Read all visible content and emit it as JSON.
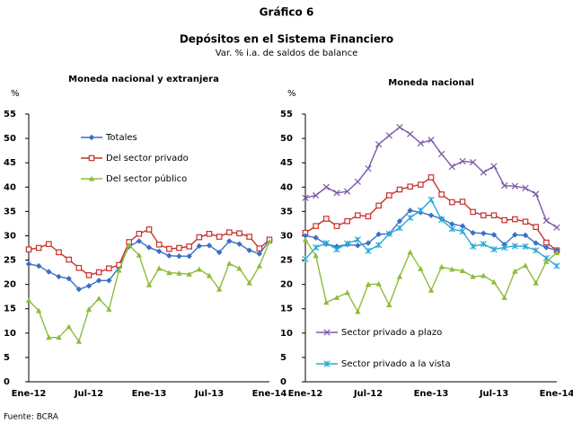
{
  "figure": {
    "label": "Gráfico 6",
    "title": "Depósitos en el Sistema Financiero",
    "subtitle": "Var. % i.a. de saldos de balance",
    "source": "Fuente: BCRA"
  },
  "chart_data": [
    {
      "type": "line",
      "title": "Moneda nacional y extranjera",
      "ylabel": "%",
      "categories": [
        "Ene-12",
        null,
        null,
        null,
        null,
        null,
        "Jul-12",
        null,
        null,
        null,
        null,
        null,
        "Ene-13",
        null,
        null,
        null,
        null,
        null,
        "Jul-13",
        null,
        null,
        null,
        null,
        null,
        "Ene-14"
      ],
      "ylim": [
        0,
        55
      ],
      "yticks": [
        0,
        5,
        10,
        15,
        20,
        25,
        30,
        35,
        40,
        45,
        50,
        55
      ],
      "legend": "upper center",
      "series": [
        {
          "name": "Totales",
          "color": "#3a6fc4",
          "marker": "diamond",
          "values": [
            24.2,
            23.8,
            22.6,
            21.6,
            21.2,
            19.0,
            19.7,
            20.8,
            20.8,
            23.5,
            27.8,
            28.9,
            27.6,
            26.8,
            25.9,
            25.8,
            25.8,
            27.9,
            28.0,
            26.6,
            28.9,
            28.3,
            27.0,
            26.3,
            29.0
          ]
        },
        {
          "name": "Del sector privado",
          "color": "#c8302c",
          "marker": "square",
          "values": [
            27.2,
            27.5,
            28.3,
            26.6,
            25.1,
            23.4,
            21.9,
            22.5,
            23.3,
            24.0,
            28.7,
            30.4,
            31.3,
            28.2,
            27.3,
            27.5,
            27.8,
            29.7,
            30.4,
            29.8,
            30.7,
            30.5,
            29.8,
            27.4,
            29.2
          ]
        },
        {
          "name": "Del sector público",
          "color": "#8cbd3a",
          "marker": "triangle",
          "values": [
            16.7,
            14.6,
            9.1,
            9.1,
            11.3,
            8.3,
            14.9,
            17.1,
            14.9,
            22.9,
            28.1,
            26.0,
            19.9,
            23.3,
            22.4,
            22.3,
            22.1,
            23.1,
            21.8,
            19.0,
            24.3,
            23.3,
            20.3,
            23.8,
            28.8
          ]
        }
      ]
    },
    {
      "type": "line",
      "title": "Moneda nacional",
      "ylabel": "%",
      "categories": [
        "Ene-12",
        null,
        null,
        null,
        null,
        null,
        "Jul-12",
        null,
        null,
        null,
        null,
        null,
        "Ene-13",
        null,
        null,
        null,
        null,
        null,
        "Jul-13",
        null,
        null,
        null,
        null,
        null,
        "Ene-14"
      ],
      "ylim": [
        0,
        55
      ],
      "yticks": [
        0,
        5,
        10,
        15,
        20,
        25,
        30,
        35,
        40,
        45,
        50,
        55
      ],
      "legend": "lower left",
      "series": [
        {
          "name": "Sector privado a plazo",
          "color": "#7a5aa8",
          "marker": "x",
          "values": [
            37.8,
            38.3,
            40.0,
            38.8,
            39.1,
            41.1,
            43.8,
            48.8,
            50.6,
            52.3,
            50.9,
            49.0,
            49.7,
            46.8,
            44.2,
            45.3,
            45.1,
            43.0,
            44.3,
            40.3,
            40.2,
            39.8,
            38.6,
            33.1,
            31.7
          ]
        },
        {
          "color": "#c8302c",
          "marker": "square",
          "values": [
            30.6,
            32.0,
            33.5,
            32.0,
            33.0,
            34.2,
            34.0,
            36.2,
            38.3,
            39.5,
            40.1,
            40.5,
            42.0,
            38.5,
            36.9,
            37.0,
            34.9,
            34.2,
            34.2,
            33.2,
            33.4,
            32.9,
            31.8,
            28.6,
            27.0
          ]
        },
        {
          "color": "#3a6fc4",
          "marker": "diamond",
          "values": [
            30.0,
            29.6,
            28.3,
            27.8,
            28.2,
            28.0,
            28.5,
            30.3,
            30.4,
            33.0,
            35.2,
            34.8,
            34.2,
            33.5,
            32.4,
            32.0,
            30.6,
            30.5,
            30.2,
            28.2,
            30.2,
            30.1,
            28.5,
            27.6,
            27.0
          ]
        },
        {
          "name": "Sector privado a la vista",
          "color": "#2aa8d8",
          "marker": "star",
          "values": [
            25.2,
            27.6,
            28.5,
            27.2,
            28.4,
            29.2,
            26.9,
            28.1,
            30.4,
            31.6,
            33.7,
            35.2,
            37.4,
            33.3,
            31.4,
            30.9,
            27.8,
            28.3,
            27.2,
            27.6,
            27.9,
            27.8,
            27.0,
            25.4,
            23.8
          ]
        },
        {
          "color": "#8cbd3a",
          "marker": "triangle",
          "values": [
            29.2,
            25.9,
            16.3,
            17.3,
            18.3,
            14.4,
            20.0,
            20.1,
            15.8,
            21.6,
            26.6,
            23.2,
            18.8,
            23.6,
            23.1,
            22.8,
            21.6,
            21.8,
            20.5,
            17.3,
            22.7,
            23.9,
            20.3,
            24.7,
            26.5
          ]
        }
      ]
    }
  ]
}
